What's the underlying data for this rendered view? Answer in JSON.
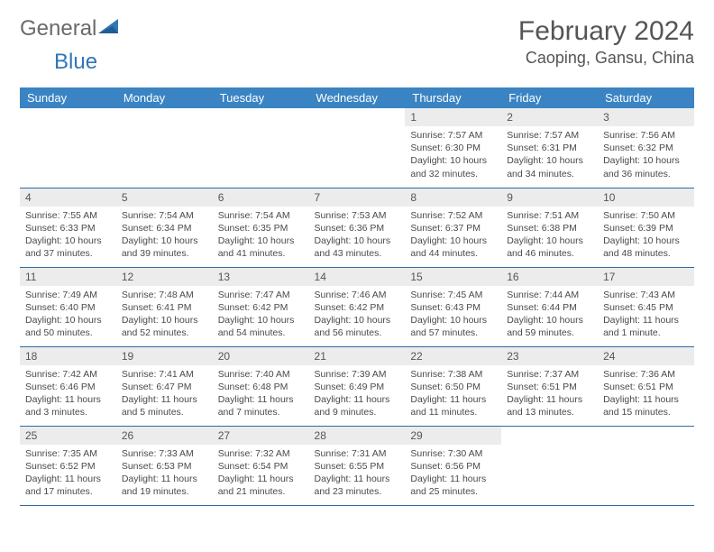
{
  "brand": {
    "word1": "General",
    "word2": "Blue"
  },
  "colors": {
    "header_bg": "#3a84c4",
    "header_text": "#ffffff",
    "daynum_bg": "#ececec",
    "rule": "#2f6aa3",
    "brand_blue": "#2f77b6",
    "body_text": "#4a4a4a"
  },
  "title": "February 2024",
  "location": "Caoping, Gansu, China",
  "weekdays": [
    "Sunday",
    "Monday",
    "Tuesday",
    "Wednesday",
    "Thursday",
    "Friday",
    "Saturday"
  ],
  "first_weekday_index": 4,
  "days": [
    {
      "n": 1,
      "sunrise": "7:57 AM",
      "sunset": "6:30 PM",
      "dl": "10 hours and 32 minutes."
    },
    {
      "n": 2,
      "sunrise": "7:57 AM",
      "sunset": "6:31 PM",
      "dl": "10 hours and 34 minutes."
    },
    {
      "n": 3,
      "sunrise": "7:56 AM",
      "sunset": "6:32 PM",
      "dl": "10 hours and 36 minutes."
    },
    {
      "n": 4,
      "sunrise": "7:55 AM",
      "sunset": "6:33 PM",
      "dl": "10 hours and 37 minutes."
    },
    {
      "n": 5,
      "sunrise": "7:54 AM",
      "sunset": "6:34 PM",
      "dl": "10 hours and 39 minutes."
    },
    {
      "n": 6,
      "sunrise": "7:54 AM",
      "sunset": "6:35 PM",
      "dl": "10 hours and 41 minutes."
    },
    {
      "n": 7,
      "sunrise": "7:53 AM",
      "sunset": "6:36 PM",
      "dl": "10 hours and 43 minutes."
    },
    {
      "n": 8,
      "sunrise": "7:52 AM",
      "sunset": "6:37 PM",
      "dl": "10 hours and 44 minutes."
    },
    {
      "n": 9,
      "sunrise": "7:51 AM",
      "sunset": "6:38 PM",
      "dl": "10 hours and 46 minutes."
    },
    {
      "n": 10,
      "sunrise": "7:50 AM",
      "sunset": "6:39 PM",
      "dl": "10 hours and 48 minutes."
    },
    {
      "n": 11,
      "sunrise": "7:49 AM",
      "sunset": "6:40 PM",
      "dl": "10 hours and 50 minutes."
    },
    {
      "n": 12,
      "sunrise": "7:48 AM",
      "sunset": "6:41 PM",
      "dl": "10 hours and 52 minutes."
    },
    {
      "n": 13,
      "sunrise": "7:47 AM",
      "sunset": "6:42 PM",
      "dl": "10 hours and 54 minutes."
    },
    {
      "n": 14,
      "sunrise": "7:46 AM",
      "sunset": "6:42 PM",
      "dl": "10 hours and 56 minutes."
    },
    {
      "n": 15,
      "sunrise": "7:45 AM",
      "sunset": "6:43 PM",
      "dl": "10 hours and 57 minutes."
    },
    {
      "n": 16,
      "sunrise": "7:44 AM",
      "sunset": "6:44 PM",
      "dl": "10 hours and 59 minutes."
    },
    {
      "n": 17,
      "sunrise": "7:43 AM",
      "sunset": "6:45 PM",
      "dl": "11 hours and 1 minute."
    },
    {
      "n": 18,
      "sunrise": "7:42 AM",
      "sunset": "6:46 PM",
      "dl": "11 hours and 3 minutes."
    },
    {
      "n": 19,
      "sunrise": "7:41 AM",
      "sunset": "6:47 PM",
      "dl": "11 hours and 5 minutes."
    },
    {
      "n": 20,
      "sunrise": "7:40 AM",
      "sunset": "6:48 PM",
      "dl": "11 hours and 7 minutes."
    },
    {
      "n": 21,
      "sunrise": "7:39 AM",
      "sunset": "6:49 PM",
      "dl": "11 hours and 9 minutes."
    },
    {
      "n": 22,
      "sunrise": "7:38 AM",
      "sunset": "6:50 PM",
      "dl": "11 hours and 11 minutes."
    },
    {
      "n": 23,
      "sunrise": "7:37 AM",
      "sunset": "6:51 PM",
      "dl": "11 hours and 13 minutes."
    },
    {
      "n": 24,
      "sunrise": "7:36 AM",
      "sunset": "6:51 PM",
      "dl": "11 hours and 15 minutes."
    },
    {
      "n": 25,
      "sunrise": "7:35 AM",
      "sunset": "6:52 PM",
      "dl": "11 hours and 17 minutes."
    },
    {
      "n": 26,
      "sunrise": "7:33 AM",
      "sunset": "6:53 PM",
      "dl": "11 hours and 19 minutes."
    },
    {
      "n": 27,
      "sunrise": "7:32 AM",
      "sunset": "6:54 PM",
      "dl": "11 hours and 21 minutes."
    },
    {
      "n": 28,
      "sunrise": "7:31 AM",
      "sunset": "6:55 PM",
      "dl": "11 hours and 23 minutes."
    },
    {
      "n": 29,
      "sunrise": "7:30 AM",
      "sunset": "6:56 PM",
      "dl": "11 hours and 25 minutes."
    }
  ],
  "labels": {
    "sunrise": "Sunrise: ",
    "sunset": "Sunset: ",
    "daylight": "Daylight: "
  }
}
